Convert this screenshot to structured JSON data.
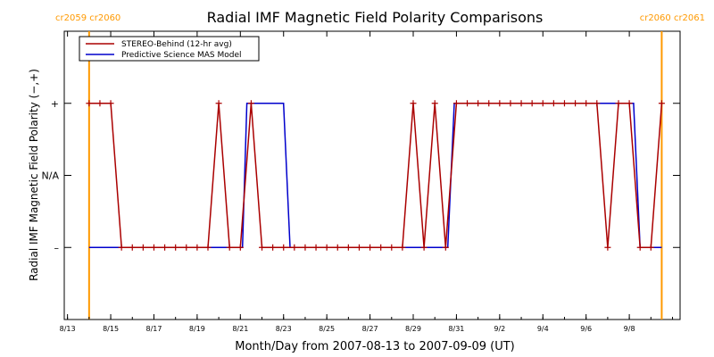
{
  "chart_data": {
    "type": "line",
    "title": "Radial IMF Magnetic Field Polarity Comparisons",
    "xlabel": "Month/Day from 2007-08-13 to 2007-09-09 (UT)",
    "ylabel": "Radial IMF Magnetic Field Polarity (−,+)",
    "xlim": [
      0,
      28
    ],
    "ylim": [
      -2,
      2
    ],
    "x_ticks": [
      {
        "value": 0,
        "label": "8/13"
      },
      {
        "value": 2,
        "label": "8/15"
      },
      {
        "value": 4,
        "label": "8/17"
      },
      {
        "value": 6,
        "label": "8/19"
      },
      {
        "value": 8,
        "label": "8/21"
      },
      {
        "value": 10,
        "label": "8/23"
      },
      {
        "value": 12,
        "label": "8/25"
      },
      {
        "value": 14,
        "label": "8/27"
      },
      {
        "value": 16,
        "label": "8/29"
      },
      {
        "value": 18,
        "label": "8/31"
      },
      {
        "value": 20,
        "label": "9/2"
      },
      {
        "value": 22,
        "label": "9/4"
      },
      {
        "value": 24,
        "label": "9/6"
      },
      {
        "value": 26,
        "label": "9/8"
      }
    ],
    "y_ticks": [
      {
        "value": 1,
        "label": "+"
      },
      {
        "value": 0,
        "label": "N/A"
      },
      {
        "value": -1,
        "label": "–"
      }
    ],
    "rotation_boundaries": [
      {
        "x": 1.0,
        "left_label": "cr2059",
        "right_label": "cr2060",
        "side": "left",
        "color": "#FF9900"
      },
      {
        "x": 27.5,
        "left_label": "cr2060",
        "right_label": "cr2061",
        "side": "right",
        "color": "#FF9900"
      }
    ],
    "series": [
      {
        "name": "STEREO-Behind (12-hr avg)",
        "color": "#AA0000",
        "marker": "+",
        "points": [
          [
            1.0,
            1
          ],
          [
            1.5,
            1
          ],
          [
            2.0,
            1
          ],
          [
            2.5,
            -1
          ],
          [
            3.0,
            -1
          ],
          [
            3.5,
            -1
          ],
          [
            4.0,
            -1
          ],
          [
            4.5,
            -1
          ],
          [
            5.0,
            -1
          ],
          [
            5.5,
            -1
          ],
          [
            6.0,
            -1
          ],
          [
            6.5,
            -1
          ],
          [
            7.0,
            1
          ],
          [
            7.5,
            -1
          ],
          [
            8.0,
            -1
          ],
          [
            8.5,
            1
          ],
          [
            9.0,
            -1
          ],
          [
            9.5,
            -1
          ],
          [
            10.0,
            -1
          ],
          [
            10.5,
            -1
          ],
          [
            11.0,
            -1
          ],
          [
            11.5,
            -1
          ],
          [
            12.0,
            -1
          ],
          [
            12.5,
            -1
          ],
          [
            13.0,
            -1
          ],
          [
            13.5,
            -1
          ],
          [
            14.0,
            -1
          ],
          [
            14.5,
            -1
          ],
          [
            15.0,
            -1
          ],
          [
            15.5,
            -1
          ],
          [
            16.0,
            1
          ],
          [
            16.5,
            -1
          ],
          [
            17.0,
            1
          ],
          [
            17.5,
            -1
          ],
          [
            18.0,
            1
          ],
          [
            18.5,
            1
          ],
          [
            19.0,
            1
          ],
          [
            19.5,
            1
          ],
          [
            20.0,
            1
          ],
          [
            20.5,
            1
          ],
          [
            21.0,
            1
          ],
          [
            21.5,
            1
          ],
          [
            22.0,
            1
          ],
          [
            22.5,
            1
          ],
          [
            23.0,
            1
          ],
          [
            23.5,
            1
          ],
          [
            24.0,
            1
          ],
          [
            24.5,
            1
          ],
          [
            25.0,
            -1
          ],
          [
            25.5,
            1
          ],
          [
            26.0,
            1
          ],
          [
            26.5,
            -1
          ],
          [
            27.0,
            -1
          ],
          [
            27.5,
            1
          ]
        ]
      },
      {
        "name": "Predictive Science MAS Model",
        "color": "#0000CC",
        "marker": "",
        "points": [
          [
            1.0,
            -1
          ],
          [
            8.1,
            -1
          ],
          [
            8.3,
            1
          ],
          [
            10.0,
            1
          ],
          [
            10.3,
            -1
          ],
          [
            17.6,
            -1
          ],
          [
            17.9,
            1
          ],
          [
            26.2,
            1
          ],
          [
            26.5,
            -1
          ],
          [
            27.5,
            -1
          ]
        ]
      }
    ],
    "legend_position": "top-left",
    "grid": false
  }
}
